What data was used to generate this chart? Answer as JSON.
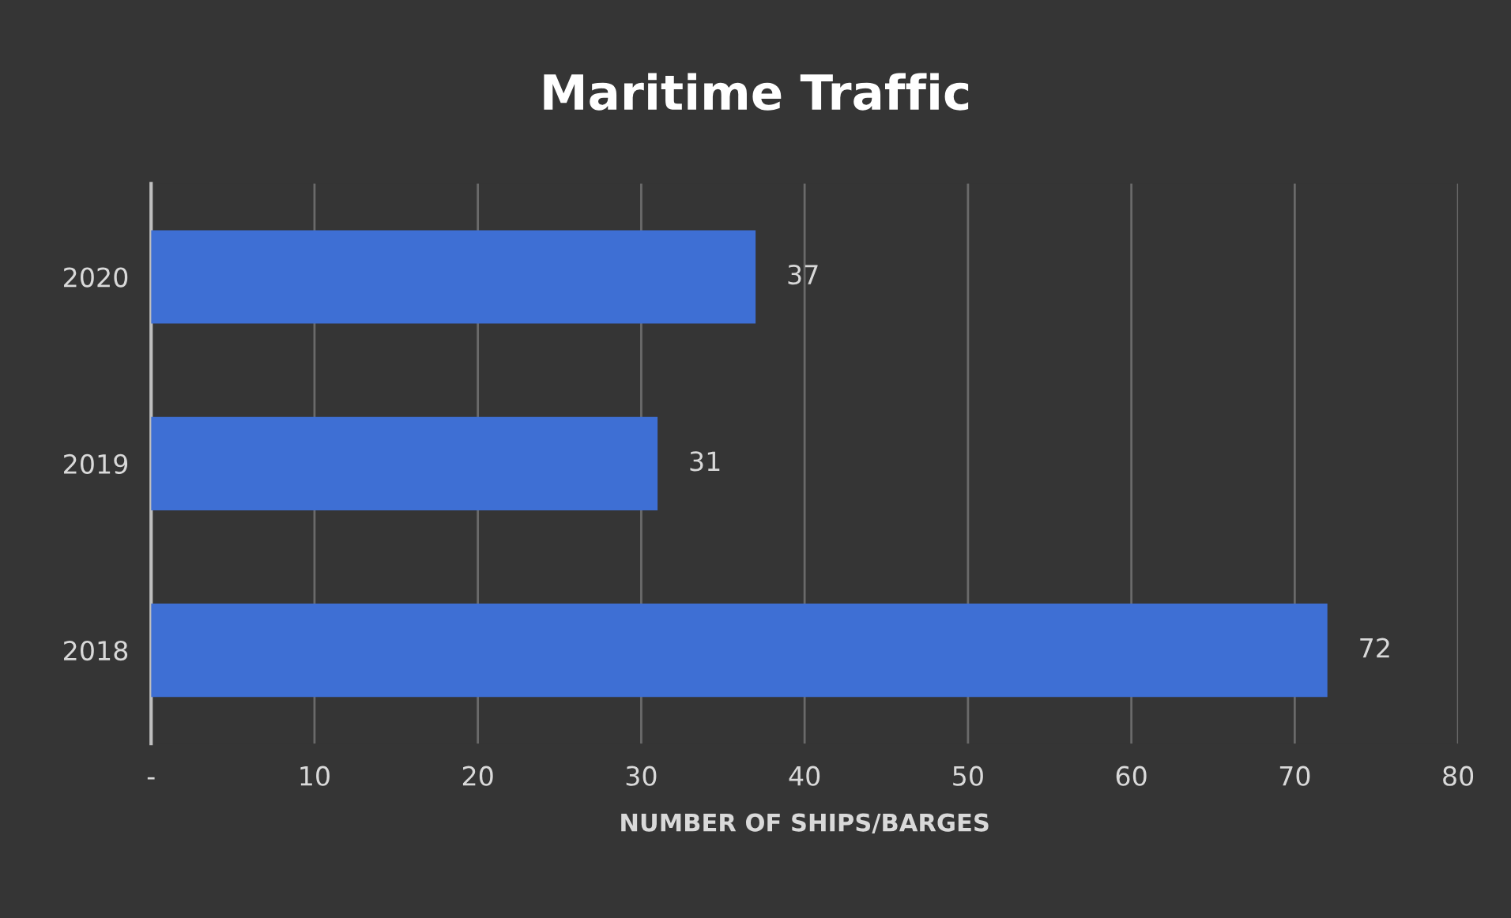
{
  "chart_data": {
    "type": "bar",
    "orientation": "horizontal",
    "title": "Maritime Traffic",
    "xlabel": "NUMBER OF SHIPS/BARGES",
    "categories": [
      "2020",
      "2019",
      "2018"
    ],
    "series": [
      {
        "color": "#3e6fd4",
        "values": [
          37,
          31,
          72
        ]
      }
    ],
    "xlim": [
      0,
      80
    ],
    "xticks": [
      {
        "value": 0,
        "label": "-"
      },
      10,
      20,
      30,
      40,
      50,
      60,
      70,
      80
    ],
    "grid": "x",
    "data_labels": true,
    "legend": false
  }
}
